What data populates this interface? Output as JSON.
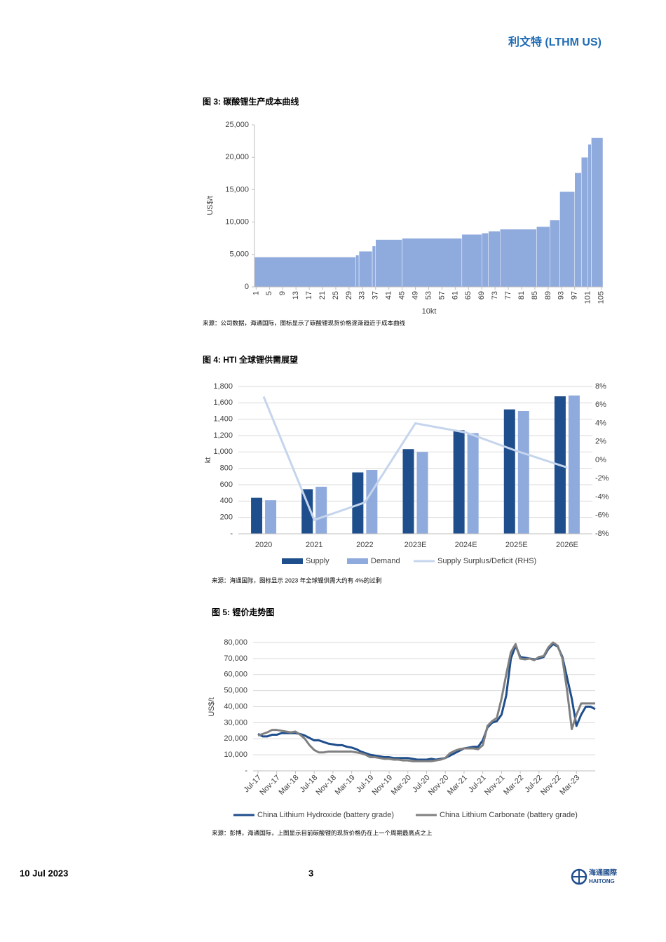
{
  "header": {
    "title": "利文特 (LTHM US)"
  },
  "chart_data": [
    {
      "type": "histogram",
      "title": "图 3:  碳酸锂生产成本曲线",
      "source": "来源：公司数据，海通国际，图标显示了碳酸锂现货价格逐渐趋近于成本曲线",
      "x_label": "10kt",
      "y_label": "US$/t",
      "color": "#8faadc",
      "grid": false,
      "bins": [
        0.5,
        31,
        32,
        36,
        37,
        45,
        63,
        69,
        71,
        74.5,
        85.5,
        89.5,
        92.5,
        97,
        99,
        101,
        102,
        105.5
      ],
      "values": [
        4600,
        4900,
        5500,
        6300,
        7300,
        7500,
        8100,
        8300,
        8600,
        8900,
        9300,
        10300,
        14700,
        17600,
        20000,
        22000,
        23000
      ],
      "xlim": [
        0.5,
        105.5
      ],
      "xticks": [
        1,
        5,
        9,
        13,
        17,
        21,
        25,
        29,
        33,
        37,
        41,
        45,
        49,
        53,
        57,
        61,
        65,
        69,
        73,
        77,
        81,
        85,
        89,
        93,
        97,
        101,
        105
      ],
      "ylim": [
        0,
        25000
      ],
      "yticks": [
        0,
        {
          "value": 5000,
          "label": "5,000"
        },
        {
          "value": 10000,
          "label": "10,000"
        },
        {
          "value": 15000,
          "label": "15,000"
        },
        {
          "value": 20000,
          "label": "20,000"
        },
        {
          "value": 25000,
          "label": "25,000"
        }
      ]
    },
    {
      "type": "bar",
      "title": "图 4: HTI 全球锂供需展望",
      "source": "来源：海通国际，图标显示 2023 年全球锂供需大约有 4%的过剩",
      "y_label": "kt",
      "grid": true,
      "categories": [
        "2020",
        "2021",
        "2022",
        "2023E",
        "2024E",
        "2025E",
        "2026E"
      ],
      "series": [
        {
          "name": "Supply",
          "color": "#1f4e8c",
          "values": [
            440,
            545,
            750,
            1035,
            1265,
            1520,
            1680
          ]
        },
        {
          "name": "Demand",
          "color": "#8faadc",
          "values": [
            410,
            575,
            780,
            1000,
            1230,
            1500,
            1690
          ]
        },
        {
          "name": "Supply Surplus/Deficit (RHS)",
          "type": "line",
          "axis": "y2",
          "color": "#c5d5ec",
          "values": [
            6.9,
            -6.5,
            -4.6,
            4.0,
            3.0,
            1.0,
            -0.8
          ]
        }
      ],
      "ylim": [
        0,
        1800
      ],
      "yticks": [
        {
          "value": 0,
          "label": "-"
        },
        200,
        400,
        600,
        800,
        {
          "value": 1000,
          "label": "1,000"
        },
        {
          "value": 1200,
          "label": "1,200"
        },
        {
          "value": 1400,
          "label": "1,400"
        },
        {
          "value": 1600,
          "label": "1,600"
        },
        {
          "value": 1800,
          "label": "1,800"
        }
      ],
      "y2lim": [
        -8,
        8
      ],
      "y2ticks": [
        {
          "value": -8,
          "label": "-8%"
        },
        {
          "value": -6,
          "label": "-6%"
        },
        {
          "value": -4,
          "label": "-4%"
        },
        {
          "value": -2,
          "label": "-2%"
        },
        {
          "value": 0,
          "label": "0%"
        },
        {
          "value": 2,
          "label": "2%"
        },
        {
          "value": 4,
          "label": "4%"
        },
        {
          "value": 6,
          "label": "6%"
        },
        {
          "value": 8,
          "label": "8%"
        }
      ]
    },
    {
      "type": "line",
      "title": "图 5: 锂价走势图",
      "source": "来源：彭博，海通国际，上图显示目前碳酸锂的现货价格仍在上一个周期最高点之上",
      "y_label": "US$/t",
      "grid": true,
      "categories": [
        "Jul-17",
        null,
        null,
        null,
        "Nov-17",
        null,
        null,
        null,
        "Mar-18",
        null,
        null,
        null,
        "Jul-18",
        null,
        null,
        null,
        "Nov-18",
        null,
        null,
        null,
        "Mar-19",
        null,
        null,
        null,
        "Jul-19",
        null,
        null,
        null,
        "Nov-19",
        null,
        null,
        null,
        "Mar-20",
        null,
        null,
        null,
        "Jul-20",
        null,
        null,
        null,
        "Nov-20",
        null,
        null,
        null,
        "Mar-21",
        null,
        null,
        null,
        "Jul-21",
        null,
        null,
        null,
        "Nov-21",
        null,
        null,
        null,
        "Mar-22",
        null,
        null,
        null,
        "Jul-22",
        null,
        null,
        null,
        "Nov-22",
        null,
        null,
        null,
        "Mar-23",
        null,
        null,
        null,
        null
      ],
      "series": [
        {
          "name": "China Lithium Hydroxide (battery grade)",
          "color": "#1f4e8c",
          "values": [
            23000,
            21500,
            21500,
            22500,
            22500,
            23500,
            23500,
            23500,
            23500,
            23000,
            22000,
            20500,
            19000,
            19000,
            18000,
            17000,
            16500,
            16000,
            16000,
            15000,
            14500,
            13500,
            12000,
            11000,
            10000,
            9500,
            9000,
            8500,
            8500,
            8000,
            8000,
            8000,
            8000,
            7500,
            7000,
            7000,
            7000,
            7500,
            7000,
            7500,
            8000,
            9500,
            11000,
            12500,
            14000,
            14500,
            15000,
            15000,
            19000,
            27000,
            30000,
            31000,
            35000,
            47000,
            70000,
            78000,
            71000,
            70500,
            70000,
            69500,
            70000,
            71000,
            76000,
            79000,
            77500,
            71000,
            58000,
            45000,
            28000,
            35000,
            40000,
            40000,
            38500
          ]
        },
        {
          "name": "China Lithium Carbonate (battery grade)",
          "color": "#808080",
          "values": [
            22000,
            23000,
            24000,
            25500,
            25500,
            25000,
            24500,
            24000,
            24500,
            22500,
            20000,
            16000,
            13000,
            11500,
            11500,
            12000,
            12000,
            12000,
            12000,
            12000,
            12000,
            11500,
            11000,
            10000,
            8500,
            8500,
            8000,
            7500,
            7500,
            7000,
            7000,
            6500,
            6500,
            6000,
            6000,
            6000,
            6000,
            6000,
            6500,
            7000,
            8000,
            11000,
            12500,
            13500,
            14000,
            14000,
            14000,
            13500,
            16000,
            28000,
            31000,
            33000,
            45000,
            60000,
            74000,
            79000,
            70000,
            69500,
            70000,
            69000,
            71000,
            71500,
            77000,
            80000,
            78000,
            70000,
            50000,
            26000,
            35000,
            42000,
            42000,
            42000,
            42000
          ]
        }
      ],
      "ylim": [
        0,
        80000
      ],
      "yticks": [
        {
          "value": 0,
          "label": "-"
        },
        {
          "value": 10000,
          "label": "10,000"
        },
        {
          "value": 20000,
          "label": "20,000"
        },
        {
          "value": 30000,
          "label": "30,000"
        },
        {
          "value": 40000,
          "label": "40,000"
        },
        {
          "value": 50000,
          "label": "50,000"
        },
        {
          "value": 60000,
          "label": "60,000"
        },
        {
          "value": 70000,
          "label": "70,000"
        },
        {
          "value": 80000,
          "label": "80,000"
        }
      ]
    }
  ],
  "footer": {
    "date": "10 Jul 2023",
    "page": "3",
    "logo_cn": "海通國際",
    "logo_en": "HAITONG"
  }
}
